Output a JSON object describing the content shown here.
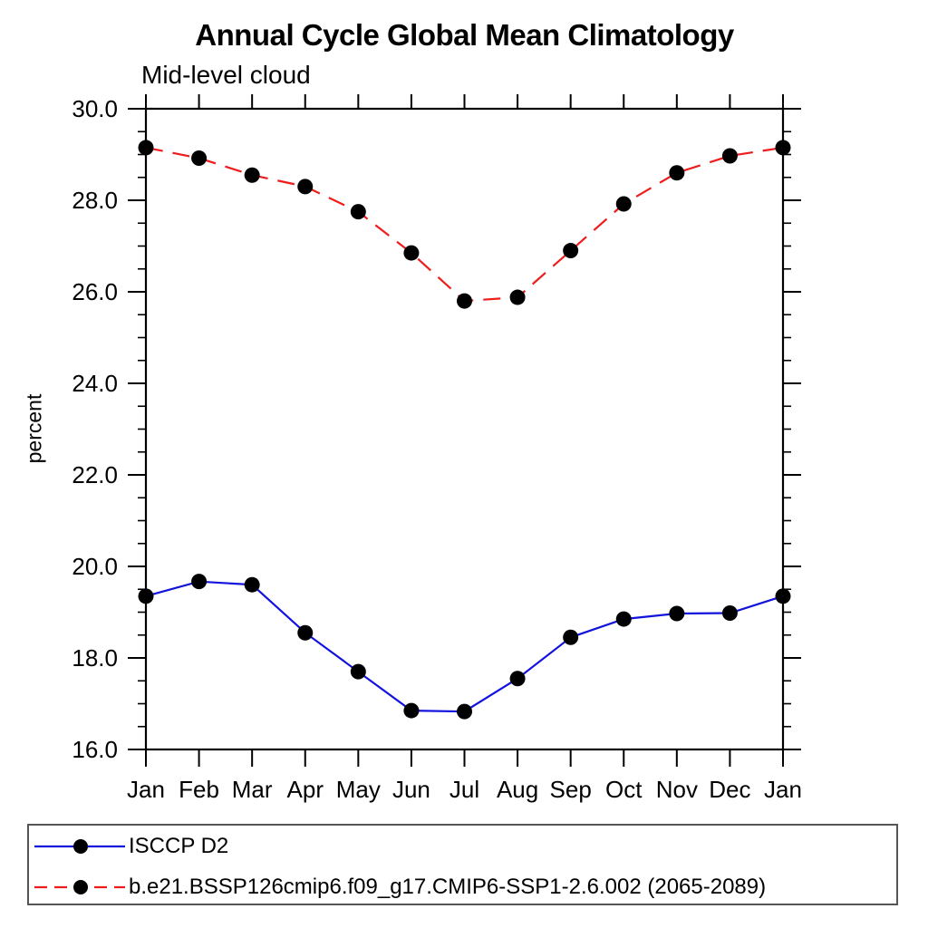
{
  "chart_data": {
    "type": "line",
    "title": "Annual Cycle Global Mean Climatology",
    "subtitle": "Mid-level cloud",
    "ylabel": "percent",
    "xlabel": "",
    "x_categories": [
      "Jan",
      "Feb",
      "Mar",
      "Apr",
      "May",
      "Jun",
      "Jul",
      "Aug",
      "Sep",
      "Oct",
      "Nov",
      "Dec",
      "Jan"
    ],
    "ylim": [
      16.0,
      30.0
    ],
    "ytick_major_step": 2.0,
    "ytick_minor_step": 0.5,
    "ytick_labels": [
      "16.0",
      "18.0",
      "20.0",
      "22.0",
      "24.0",
      "26.0",
      "28.0",
      "30.0"
    ],
    "grid": false,
    "legend_position": "bottom framed box",
    "axis_color": "#000000",
    "marker_color": "#000000",
    "series": [
      {
        "name": "ISCCP D2",
        "color": "#1212dd",
        "line_style": "solid",
        "marker": "filled-circle",
        "values": [
          19.35,
          19.67,
          19.6,
          18.55,
          17.7,
          16.85,
          16.83,
          17.55,
          18.45,
          18.85,
          18.97,
          18.98,
          19.35
        ]
      },
      {
        "name": "b.e21.BSSP126cmip6.f09_g17.CMIP6-SSP1-2.6.002 (2065-2089)",
        "color": "#ee1c1c",
        "line_style": "dashed",
        "marker": "filled-circle",
        "values": [
          29.15,
          28.92,
          28.55,
          28.3,
          27.75,
          26.85,
          25.8,
          25.88,
          26.9,
          27.92,
          28.6,
          28.97,
          29.15
        ]
      }
    ]
  }
}
